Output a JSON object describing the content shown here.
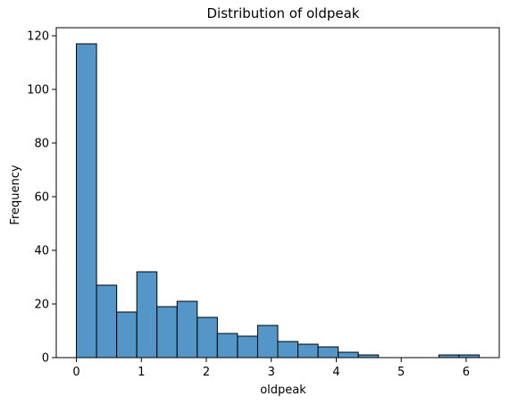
{
  "chart_data": {
    "type": "bar",
    "title": "Distribution of oldpeak",
    "xlabel": "oldpeak",
    "ylabel": "Frequency",
    "xlim": [
      -0.31,
      6.51
    ],
    "ylim": [
      0,
      123
    ],
    "x_ticks": [
      0,
      1,
      2,
      3,
      4,
      5,
      6
    ],
    "y_ticks": [
      0,
      20,
      40,
      60,
      80,
      100,
      120
    ],
    "bin_width": 0.31,
    "bins": [
      {
        "x0": 0.0,
        "x1": 0.31,
        "count": 117
      },
      {
        "x0": 0.31,
        "x1": 0.62,
        "count": 27
      },
      {
        "x0": 0.62,
        "x1": 0.93,
        "count": 17
      },
      {
        "x0": 0.93,
        "x1": 1.24,
        "count": 32
      },
      {
        "x0": 1.24,
        "x1": 1.55,
        "count": 19
      },
      {
        "x0": 1.55,
        "x1": 1.86,
        "count": 21
      },
      {
        "x0": 1.86,
        "x1": 2.17,
        "count": 15
      },
      {
        "x0": 2.17,
        "x1": 2.48,
        "count": 9
      },
      {
        "x0": 2.48,
        "x1": 2.79,
        "count": 8
      },
      {
        "x0": 2.79,
        "x1": 3.1,
        "count": 12
      },
      {
        "x0": 3.1,
        "x1": 3.41,
        "count": 6
      },
      {
        "x0": 3.41,
        "x1": 3.72,
        "count": 5
      },
      {
        "x0": 3.72,
        "x1": 4.03,
        "count": 4
      },
      {
        "x0": 4.03,
        "x1": 4.34,
        "count": 2
      },
      {
        "x0": 4.34,
        "x1": 4.65,
        "count": 1
      },
      {
        "x0": 4.65,
        "x1": 4.96,
        "count": 0
      },
      {
        "x0": 4.96,
        "x1": 5.27,
        "count": 0
      },
      {
        "x0": 5.27,
        "x1": 5.58,
        "count": 0
      },
      {
        "x0": 5.58,
        "x1": 5.89,
        "count": 1
      },
      {
        "x0": 5.89,
        "x1": 6.2,
        "count": 1
      }
    ],
    "bar_color": "#5496c7",
    "edge_color": "#000000",
    "grid": false,
    "legend": "none"
  }
}
